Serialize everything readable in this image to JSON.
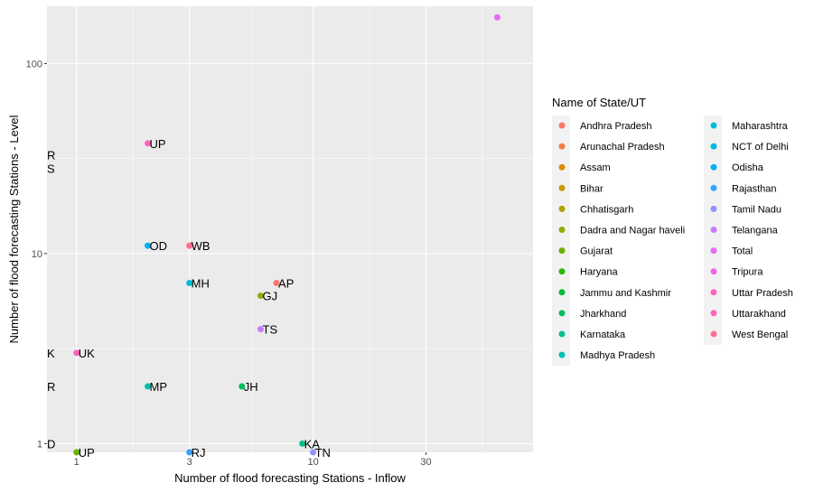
{
  "chart_data": {
    "type": "scatter",
    "xlabel": "Number of flood forecasting Stations - Inflow",
    "ylabel": "Number of flood forecasting Stations - Level",
    "x_scale": "log10",
    "y_scale": "log10",
    "xlim": [
      0.75,
      85
    ],
    "ylim": [
      0.9,
      200
    ],
    "x_ticks": [
      1,
      3,
      10,
      30
    ],
    "x_tick_labels": [
      "1",
      "3",
      "10",
      "30"
    ],
    "y_ticks": [
      1,
      10,
      100
    ],
    "y_tick_labels": [
      "1",
      "10",
      "100"
    ],
    "grid": true,
    "legend": {
      "title": "Name of State/UT",
      "position": "right",
      "entries": [
        {
          "name": "Andhra Pradesh",
          "color": "#F8766D"
        },
        {
          "name": "Arunachal Pradesh",
          "color": "#EE8044"
        },
        {
          "name": "Assam",
          "color": "#DE8C00"
        },
        {
          "name": "Bihar",
          "color": "#C99800"
        },
        {
          "name": "Chhatisgarh",
          "color": "#B0A100"
        },
        {
          "name": "Dadra and Nagar haveli",
          "color": "#93AA00"
        },
        {
          "name": "Gujarat",
          "color": "#6BB100"
        },
        {
          "name": "Haryana",
          "color": "#2BB600"
        },
        {
          "name": "Jammu and Kashmir",
          "color": "#00BA38"
        },
        {
          "name": "Jharkhand",
          "color": "#00BD5F"
        },
        {
          "name": "Karnataka",
          "color": "#00C08B"
        },
        {
          "name": "Madhya Pradesh",
          "color": "#00C0AF"
        },
        {
          "name": "Maharashtra",
          "color": "#00BCD8"
        },
        {
          "name": "NCT of Delhi",
          "color": "#00B9E3"
        },
        {
          "name": "Odisha",
          "color": "#00B0F6"
        },
        {
          "name": "Rajasthan",
          "color": "#35A2FF"
        },
        {
          "name": "Tamil Nadu",
          "color": "#9590FF"
        },
        {
          "name": "Telangana",
          "color": "#C77CFF"
        },
        {
          "name": "Total",
          "color": "#E76BF3"
        },
        {
          "name": "Tripura",
          "color": "#F564E3"
        },
        {
          "name": "Uttar Pradesh",
          "color": "#FF61C3"
        },
        {
          "name": "Uttarakhand",
          "color": "#FF62BC"
        },
        {
          "name": "West Bengal",
          "color": "#FF6C91"
        }
      ]
    },
    "points": [
      {
        "label": "AP",
        "x": 7,
        "y": 7,
        "color": "#F8766D"
      },
      {
        "label": "GJ",
        "x": 6,
        "y": 6,
        "color": "#93AA00"
      },
      {
        "label": "TS",
        "x": 6,
        "y": 4,
        "color": "#C77CFF"
      },
      {
        "label": "MH",
        "x": 3,
        "y": 7,
        "color": "#00BCD8"
      },
      {
        "label": "WB",
        "x": 3,
        "y": 11,
        "color": "#FF6C91"
      },
      {
        "label": "OD",
        "x": 2,
        "y": 11,
        "color": "#00B0F6"
      },
      {
        "label": "UP",
        "x": 2,
        "y": 38,
        "color": "#FF61C3"
      },
      {
        "label": "MP",
        "x": 2,
        "y": 2,
        "color": "#00C0AF"
      },
      {
        "label": "JH",
        "x": 5,
        "y": 2,
        "color": "#00BD5F"
      },
      {
        "label": "UK",
        "x": 1,
        "y": 3,
        "color": "#FF62BC"
      },
      {
        "label": "KA",
        "x": 9,
        "y": 1,
        "color": "#00C08B"
      },
      {
        "label": "UP",
        "x": 1,
        "y": 0.8,
        "color": "#6BB100"
      },
      {
        "label": "RJ",
        "x": 3,
        "y": 0.8,
        "color": "#35A2FF"
      },
      {
        "label": "TN",
        "x": 10,
        "y": 0.8,
        "color": "#9590FF"
      },
      {
        "label": "",
        "x": 60,
        "y": 175,
        "color": "#E76BF3"
      }
    ],
    "edge_labels": [
      {
        "label": "R",
        "y": 33
      },
      {
        "label": "S",
        "y": 28
      },
      {
        "label": "K",
        "y": 3
      },
      {
        "label": "R",
        "y": 2
      },
      {
        "label": "D",
        "y": 1
      }
    ]
  }
}
